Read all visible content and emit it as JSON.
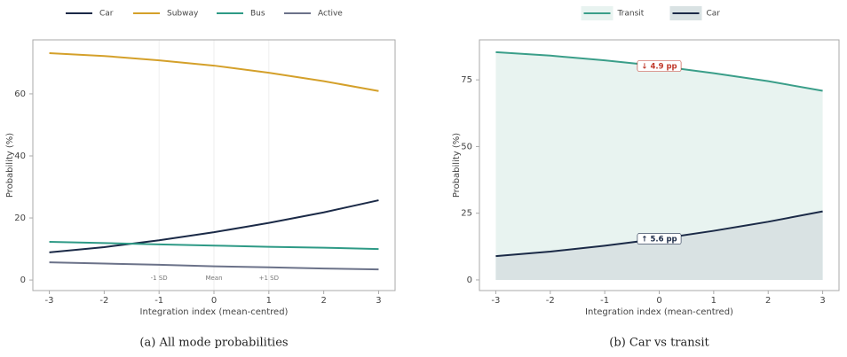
{
  "chart_data": [
    {
      "type": "line",
      "caption": "(a) All mode probabilities",
      "x_label": "Integration index (mean-centred)",
      "y_label": "Probability (%)",
      "x": [
        -3,
        -2,
        -1,
        0,
        1,
        2,
        3
      ],
      "series": [
        {
          "name": "Car",
          "color": "#1b2a47",
          "values": [
            8.9,
            10.6,
            12.8,
            15.4,
            18.4,
            21.8,
            25.7
          ]
        },
        {
          "name": "Subway",
          "color": "#d4a02a",
          "values": [
            73.1,
            72.2,
            70.8,
            69.1,
            66.8,
            64.1,
            60.9
          ]
        },
        {
          "name": "Bus",
          "color": "#2e9a86",
          "values": [
            12.3,
            11.9,
            11.5,
            11.1,
            10.7,
            10.4,
            10.0
          ]
        },
        {
          "name": "Active",
          "color": "#6b7289",
          "values": [
            5.7,
            5.3,
            4.9,
            4.4,
            4.1,
            3.7,
            3.4
          ]
        }
      ],
      "xlim": [
        -3.3,
        3.3
      ],
      "ylim": [
        -3.4,
        77.4
      ],
      "xticks": [
        -3,
        -2,
        -1,
        0,
        1,
        2,
        3
      ],
      "yticks": [
        0,
        20,
        40,
        60
      ],
      "annotations": [
        {
          "x": -1,
          "text": "-1 SD"
        },
        {
          "x": 0,
          "text": "Mean"
        },
        {
          "x": 1,
          "text": "+1 SD"
        }
      ]
    },
    {
      "type": "area",
      "caption": "(b) Car vs transit",
      "x_label": "Integration index (mean-centred)",
      "y_label": "Probability (%)",
      "x": [
        -3,
        -2,
        -1,
        0,
        1,
        2,
        3
      ],
      "series": [
        {
          "name": "Transit",
          "color": "#3a9e89",
          "fill": "#e8f3f0",
          "values": [
            85.4,
            84.1,
            82.3,
            80.2,
            77.5,
            74.5,
            70.9
          ]
        },
        {
          "name": "Car",
          "color": "#1b2a47",
          "fill": "#d9e2e3",
          "values": [
            8.9,
            10.6,
            12.8,
            15.4,
            18.4,
            21.8,
            25.7
          ]
        }
      ],
      "xlim": [
        -3.3,
        3.3
      ],
      "ylim": [
        -4,
        90
      ],
      "xticks": [
        -3,
        -2,
        -1,
        0,
        1,
        2,
        3
      ],
      "yticks": [
        0,
        25,
        50,
        75
      ],
      "annotations": [
        {
          "x": 0,
          "y": 80.2,
          "text": "↓ 4.9 pp",
          "color": "#c0392b"
        },
        {
          "x": 0,
          "y": 15.4,
          "text": "↑ 5.6 pp",
          "color": "#1b2a47"
        }
      ]
    }
  ]
}
